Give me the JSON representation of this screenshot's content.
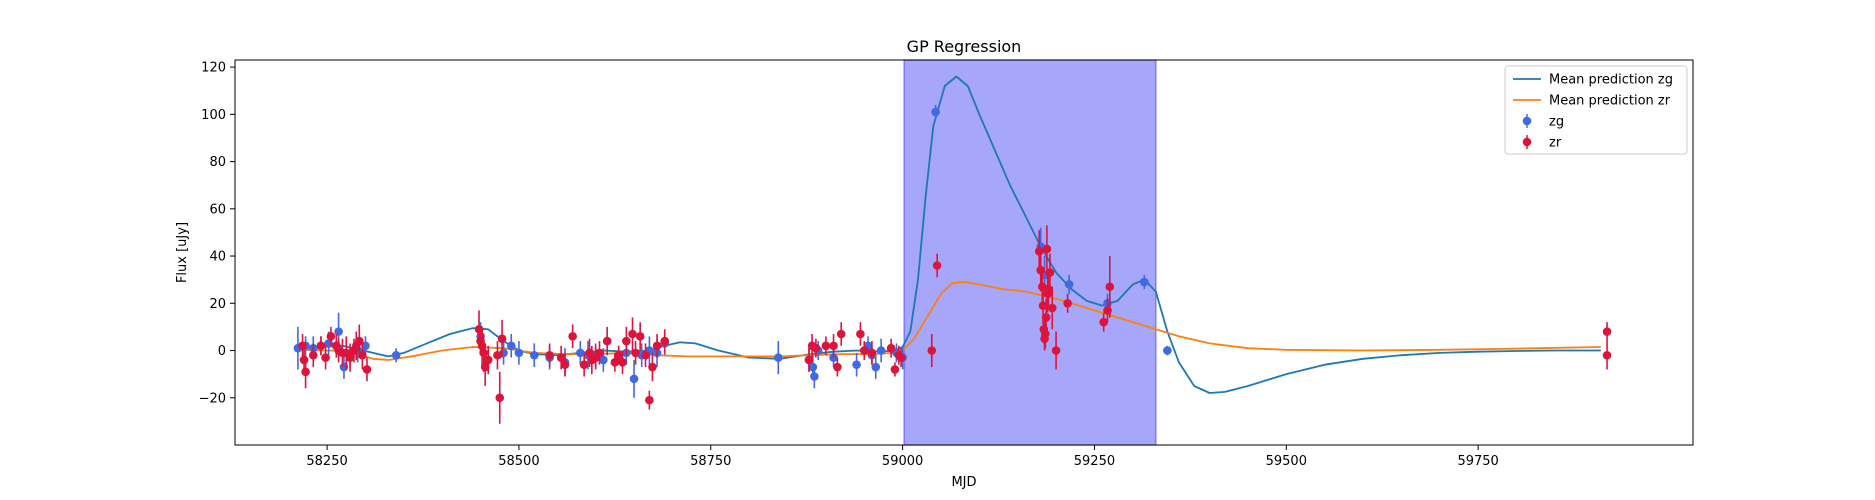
{
  "chart_data": {
    "type": "scatter",
    "title": "GP Regression",
    "xlabel": "MJD",
    "ylabel": "Flux [uJy]",
    "xlim": [
      58130,
      60030
    ],
    "ylim": [
      -40,
      123
    ],
    "xticks": [
      58250,
      58500,
      58750,
      59000,
      59250,
      59500,
      59750
    ],
    "yticks": [
      -20,
      0,
      20,
      40,
      60,
      80,
      100,
      120
    ],
    "grid": false,
    "legend_position": "top-right",
    "highlight_span": {
      "x_start": 59002,
      "x_end": 59330,
      "color": "#a6a6fb"
    },
    "series": [
      {
        "name": "Mean prediction zg",
        "kind": "line",
        "color": "#1f77b4",
        "points": [
          [
            58210,
            1
          ],
          [
            58240,
            1.5
          ],
          [
            58270,
            2
          ],
          [
            58290,
            0.5
          ],
          [
            58310,
            -1
          ],
          [
            58330,
            -2.5
          ],
          [
            58350,
            -1
          ],
          [
            58380,
            3
          ],
          [
            58410,
            7
          ],
          [
            58440,
            9.5
          ],
          [
            58460,
            9
          ],
          [
            58480,
            4
          ],
          [
            58500,
            0
          ],
          [
            58520,
            -1.5
          ],
          [
            58550,
            -2
          ],
          [
            58580,
            -1
          ],
          [
            58610,
            0
          ],
          [
            58640,
            -0.5
          ],
          [
            58670,
            0
          ],
          [
            58690,
            2
          ],
          [
            58710,
            3.5
          ],
          [
            58730,
            3
          ],
          [
            58760,
            0
          ],
          [
            58800,
            -3
          ],
          [
            58840,
            -3.5
          ],
          [
            58880,
            -1.5
          ],
          [
            58910,
            -0.5
          ],
          [
            58940,
            0
          ],
          [
            58970,
            -0.5
          ],
          [
            58990,
            0
          ],
          [
            59000,
            1.5
          ],
          [
            59010,
            8
          ],
          [
            59020,
            30
          ],
          [
            59030,
            65
          ],
          [
            59040,
            95
          ],
          [
            59055,
            112
          ],
          [
            59070,
            116
          ],
          [
            59085,
            112
          ],
          [
            59100,
            100
          ],
          [
            59120,
            85
          ],
          [
            59140,
            70
          ],
          [
            59160,
            57
          ],
          [
            59180,
            44
          ],
          [
            59200,
            33
          ],
          [
            59220,
            26
          ],
          [
            59240,
            21
          ],
          [
            59260,
            19
          ],
          [
            59280,
            21
          ],
          [
            59300,
            28
          ],
          [
            59315,
            30
          ],
          [
            59330,
            25
          ],
          [
            59345,
            8
          ],
          [
            59360,
            -5
          ],
          [
            59380,
            -15
          ],
          [
            59400,
            -18
          ],
          [
            59420,
            -17.5
          ],
          [
            59450,
            -15
          ],
          [
            59500,
            -10
          ],
          [
            59550,
            -6
          ],
          [
            59600,
            -3.5
          ],
          [
            59650,
            -2
          ],
          [
            59700,
            -1
          ],
          [
            59750,
            -0.5
          ],
          [
            59800,
            -0.2
          ],
          [
            59850,
            0
          ],
          [
            59910,
            0
          ]
        ]
      },
      {
        "name": "Mean prediction zr",
        "kind": "line",
        "color": "#ff7f0e",
        "points": [
          [
            58210,
            0.5
          ],
          [
            58240,
            0
          ],
          [
            58270,
            0
          ],
          [
            58290,
            -1.5
          ],
          [
            58310,
            -3.5
          ],
          [
            58330,
            -4
          ],
          [
            58360,
            -2.5
          ],
          [
            58400,
            0
          ],
          [
            58440,
            1.5
          ],
          [
            58480,
            1
          ],
          [
            58520,
            -1
          ],
          [
            58560,
            -1.5
          ],
          [
            58600,
            -1.5
          ],
          [
            58640,
            -1
          ],
          [
            58680,
            -2
          ],
          [
            58720,
            -2.5
          ],
          [
            58760,
            -2.5
          ],
          [
            58800,
            -2.5
          ],
          [
            58840,
            -2.5
          ],
          [
            58880,
            -2
          ],
          [
            58920,
            -1.5
          ],
          [
            58960,
            -1.5
          ],
          [
            58990,
            -1
          ],
          [
            59000,
            0
          ],
          [
            59015,
            5
          ],
          [
            59030,
            13
          ],
          [
            59050,
            24
          ],
          [
            59065,
            28.5
          ],
          [
            59080,
            29
          ],
          [
            59100,
            28
          ],
          [
            59130,
            26
          ],
          [
            59160,
            25
          ],
          [
            59200,
            22
          ],
          [
            59240,
            18
          ],
          [
            59280,
            14
          ],
          [
            59320,
            10
          ],
          [
            59360,
            6
          ],
          [
            59400,
            3
          ],
          [
            59450,
            1
          ],
          [
            59500,
            0.3
          ],
          [
            59600,
            0
          ],
          [
            59700,
            0.3
          ],
          [
            59800,
            0.8
          ],
          [
            59910,
            1.5
          ]
        ]
      },
      {
        "name": "zg",
        "kind": "errorbar",
        "color": "#4169e1",
        "points": [
          [
            58212,
            1,
            9
          ],
          [
            58222,
            2,
            4
          ],
          [
            58232,
            1,
            5
          ],
          [
            58242,
            2,
            4
          ],
          [
            58252,
            3,
            5
          ],
          [
            58262,
            2,
            4
          ],
          [
            58265,
            8,
            8
          ],
          [
            58272,
            -7,
            5
          ],
          [
            58280,
            -3,
            4
          ],
          [
            58290,
            0,
            5
          ],
          [
            58300,
            2,
            4
          ],
          [
            58340,
            -2,
            3
          ],
          [
            58450,
            6,
            6
          ],
          [
            58480,
            -1,
            5
          ],
          [
            58490,
            2,
            5
          ],
          [
            58500,
            -1,
            5
          ],
          [
            58520,
            -2,
            5
          ],
          [
            58540,
            -3,
            5
          ],
          [
            58560,
            -5,
            6
          ],
          [
            58580,
            -1,
            5
          ],
          [
            58590,
            -2,
            6
          ],
          [
            58600,
            -2,
            5
          ],
          [
            58610,
            -4,
            5
          ],
          [
            58630,
            -2,
            4
          ],
          [
            58640,
            -1,
            5
          ],
          [
            58650,
            -12,
            8
          ],
          [
            58660,
            -2,
            5
          ],
          [
            58670,
            0,
            6
          ],
          [
            58680,
            -1,
            6
          ],
          [
            58690,
            3,
            5
          ],
          [
            58838,
            -3,
            7
          ],
          [
            58878,
            -4,
            5
          ],
          [
            58883,
            -7,
            5
          ],
          [
            58885,
            -11,
            5
          ],
          [
            58890,
            0,
            4
          ],
          [
            58910,
            -3,
            4
          ],
          [
            58940,
            -6,
            5
          ],
          [
            58955,
            2,
            4
          ],
          [
            58960,
            -2,
            4
          ],
          [
            58965,
            -7,
            5
          ],
          [
            58972,
            0,
            5
          ],
          [
            58992,
            -1,
            4
          ],
          [
            59000,
            -3,
            5
          ],
          [
            59043,
            101,
            3
          ],
          [
            59180,
            44,
            8
          ],
          [
            59185,
            32,
            8
          ],
          [
            59217,
            28,
            4
          ],
          [
            59267,
            20,
            4
          ],
          [
            59315,
            29,
            3
          ],
          [
            59345,
            0,
            2
          ]
        ]
      },
      {
        "name": "zr",
        "kind": "errorbar",
        "color": "#dc143c",
        "points": [
          [
            58218,
            2,
            5
          ],
          [
            58220,
            -4,
            6
          ],
          [
            58222,
            -9,
            7
          ],
          [
            58232,
            -2,
            5
          ],
          [
            58242,
            2,
            4
          ],
          [
            58248,
            -3,
            5
          ],
          [
            58255,
            6,
            4
          ],
          [
            58262,
            2,
            5
          ],
          [
            58265,
            0,
            5
          ],
          [
            58270,
            -1,
            6
          ],
          [
            58275,
            -1,
            7
          ],
          [
            58280,
            -3,
            6
          ],
          [
            58285,
            0,
            5
          ],
          [
            58288,
            2,
            6
          ],
          [
            58292,
            4,
            7
          ],
          [
            58296,
            -2,
            6
          ],
          [
            58302,
            -8,
            5
          ],
          [
            58448,
            9,
            8
          ],
          [
            58450,
            4,
            6
          ],
          [
            58452,
            2,
            8
          ],
          [
            58454,
            -1,
            8
          ],
          [
            58456,
            -7,
            8
          ],
          [
            58460,
            -4,
            6
          ],
          [
            58472,
            -2,
            6
          ],
          [
            58475,
            -20,
            11
          ],
          [
            58478,
            5,
            8
          ],
          [
            58540,
            -2,
            5
          ],
          [
            58555,
            -3,
            5
          ],
          [
            58560,
            -6,
            5
          ],
          [
            58570,
            6,
            5
          ],
          [
            58585,
            -6,
            5
          ],
          [
            58592,
            -1,
            6
          ],
          [
            58595,
            -4,
            6
          ],
          [
            58600,
            -3,
            5
          ],
          [
            58605,
            -1,
            5
          ],
          [
            58615,
            4,
            6
          ],
          [
            58625,
            -5,
            4
          ],
          [
            58630,
            -2,
            4
          ],
          [
            58635,
            -5,
            5
          ],
          [
            58640,
            4,
            6
          ],
          [
            58648,
            7,
            7
          ],
          [
            58652,
            -1,
            5
          ],
          [
            58658,
            6,
            6
          ],
          [
            58665,
            -2,
            5
          ],
          [
            58670,
            -21,
            4
          ],
          [
            58674,
            -7,
            6
          ],
          [
            58680,
            2,
            5
          ],
          [
            58690,
            4,
            5
          ],
          [
            58878,
            -4,
            5
          ],
          [
            58882,
            2,
            5
          ],
          [
            58887,
            1,
            4
          ],
          [
            58900,
            2,
            4
          ],
          [
            58910,
            2,
            5
          ],
          [
            58915,
            -7,
            4
          ],
          [
            58920,
            7,
            5
          ],
          [
            58945,
            7,
            5
          ],
          [
            58950,
            0,
            4
          ],
          [
            58960,
            -1,
            5
          ],
          [
            58985,
            1,
            4
          ],
          [
            58990,
            -8,
            3
          ],
          [
            58995,
            -2,
            4
          ],
          [
            58998,
            -3,
            4
          ],
          [
            59038,
            0,
            7
          ],
          [
            59045,
            36,
            5
          ],
          [
            59178,
            42,
            9
          ],
          [
            59180,
            34,
            9
          ],
          [
            59182,
            27,
            8
          ],
          [
            59183,
            19,
            8
          ],
          [
            59184,
            9,
            6
          ],
          [
            59185,
            5,
            5
          ],
          [
            59186,
            7,
            6
          ],
          [
            59187,
            14,
            8
          ],
          [
            59188,
            43,
            10
          ],
          [
            59189,
            24,
            8
          ],
          [
            59190,
            26,
            8
          ],
          [
            59192,
            33,
            8
          ],
          [
            59195,
            18,
            9
          ],
          [
            59200,
            0,
            8
          ],
          [
            59215,
            20,
            4
          ],
          [
            59262,
            12,
            4
          ],
          [
            59267,
            17,
            5
          ],
          [
            59270,
            27,
            13
          ],
          [
            59918,
            8,
            4
          ],
          [
            59918,
            -2,
            6
          ]
        ]
      }
    ]
  }
}
